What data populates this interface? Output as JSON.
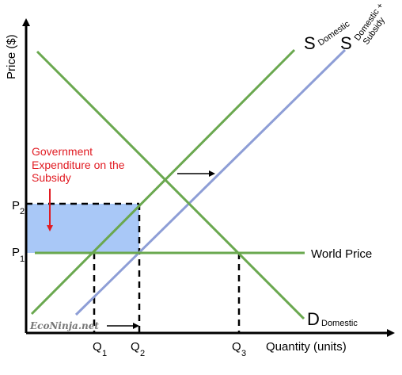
{
  "axes": {
    "y_label": "Price ($)",
    "x_label": "Quantity (units)"
  },
  "price_labels": {
    "p2": {
      "letter": "P",
      "sub": "2"
    },
    "p1": {
      "letter": "P",
      "sub": "1"
    }
  },
  "quantity_labels": {
    "q1": {
      "letter": "Q",
      "sub": "1"
    },
    "q2": {
      "letter": "Q",
      "sub": "2"
    },
    "q3": {
      "letter": "Q",
      "sub": "3"
    }
  },
  "curves": {
    "supply_domestic": {
      "letter": "S",
      "sub": "Domestic",
      "color": "#6aa84f"
    },
    "supply_subsidy": {
      "letter": "S",
      "sub_line1": "Domestic +",
      "sub_line2": "Subsidy",
      "color": "#8e9ed6"
    },
    "demand_domestic": {
      "letter": "D",
      "sub": "Domestic",
      "color": "#6aa84f"
    },
    "world_price": {
      "label": "World Price",
      "color": "#6aa84f"
    }
  },
  "annotation": {
    "lines": [
      "Government",
      "Expenditure on the",
      "Subsidy"
    ],
    "color": "#e11b22"
  },
  "shaded_area_color": "#a9c8f7",
  "watermark": "EcoNinja.net"
}
